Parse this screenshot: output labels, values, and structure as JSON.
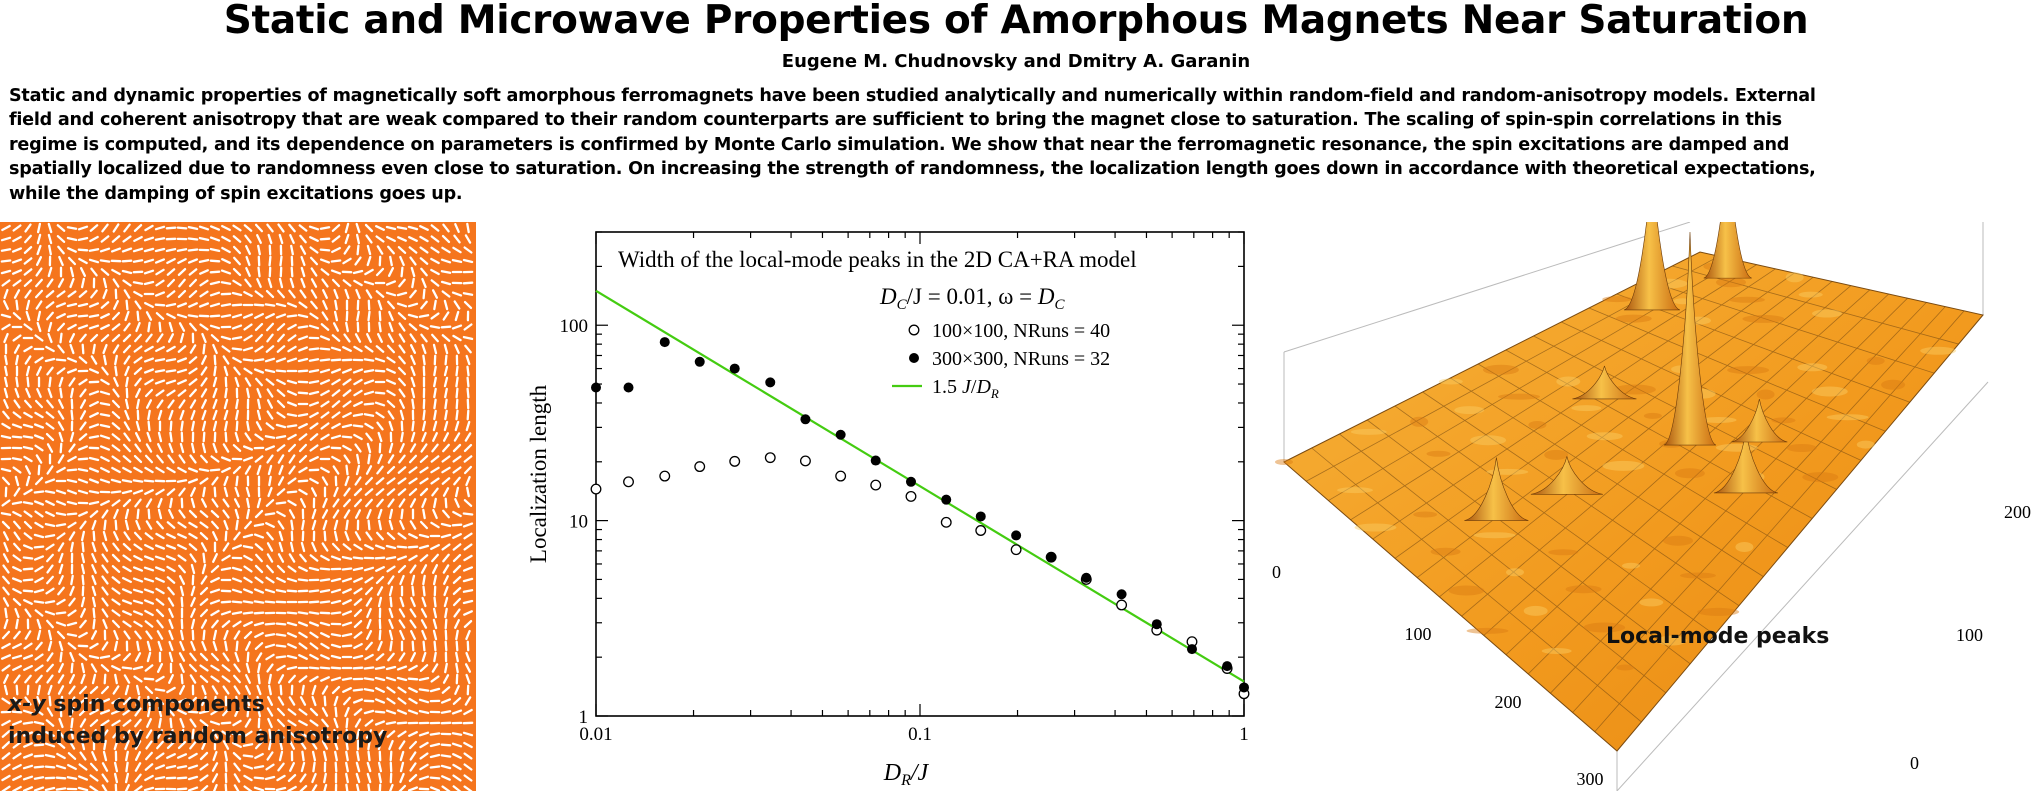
{
  "title": "Static and Microwave Properties of Amorphous Magnets Near Saturation",
  "authors": "Eugene M. Chudnovsky and Dmitry A. Garanin",
  "abstract_lines": [
    "Static and dynamic properties of magnetically soft amorphous ferromagnets have been studied analytically and numerically within random-field and random-anisotropy models. External",
    "field and coherent anisotropy that are weak compared to their random counterparts are sufficient to bring the magnet close to saturation. The scaling of spin-spin correlations in this",
    "regime is computed, and its dependence on parameters is confirmed by Monte Carlo simulation. We show that near the ferromagnetic resonance, the spin excitations are damped and",
    "spatially localized due to randomness even close to saturation. On increasing the strength of randomness, the localization length goes down in accordance with theoretical expectations,",
    "while the damping of spin excitations goes up."
  ],
  "left_figure": {
    "caption_line1_italic": "x-y",
    "caption_line1_rest": " spin components",
    "caption_line2": "induced by random anisotropy",
    "background_color": "#f5751d",
    "arrow_color": "#ffffff"
  },
  "right_figure": {
    "caption": "Local-mode peaks",
    "x_ticks": [
      "100",
      "200",
      "300"
    ],
    "y_ticks": [
      "0",
      "100",
      "200",
      "300"
    ],
    "left_tick": "0",
    "surface_color": "#f29a1e"
  },
  "chart_data": {
    "type": "scatter",
    "title": "Width of the local-mode peaks in the 2D CA+RA model",
    "subtitle_parts": [
      "D",
      "C",
      "/J  = 0.01, ω = ",
      "D",
      "C"
    ],
    "xlabel_parts": [
      "D",
      "R",
      "/J"
    ],
    "ylabel": "Localization length",
    "xscale": "log",
    "yscale": "log",
    "xlim": [
      0.01,
      1
    ],
    "ylim": [
      1,
      300
    ],
    "x_tick_labels": [
      "0.01",
      "0.1",
      "1"
    ],
    "y_tick_labels": [
      "1",
      "10",
      "100"
    ],
    "legend_position": "top-right",
    "series": [
      {
        "name": "100×100, NRuns = 40",
        "marker": "open-circle",
        "x": [
          0.01,
          0.0126,
          0.0163,
          0.0209,
          0.0268,
          0.0345,
          0.0443,
          0.0569,
          0.073,
          0.0938,
          0.1205,
          0.154,
          0.198,
          0.254,
          0.326,
          0.419,
          0.538,
          0.691,
          0.887,
          1.0
        ],
        "y": [
          14.5,
          15.8,
          16.9,
          18.9,
          20.1,
          21.0,
          20.2,
          16.9,
          15.2,
          13.3,
          9.8,
          8.9,
          7.1,
          6.5,
          5.0,
          3.7,
          2.75,
          2.4,
          1.75,
          1.3
        ]
      },
      {
        "name": "300×300, NRuns = 32",
        "marker": "filled-circle",
        "x": [
          0.01,
          0.0126,
          0.0163,
          0.0209,
          0.0268,
          0.0345,
          0.0443,
          0.0569,
          0.073,
          0.0938,
          0.1205,
          0.154,
          0.198,
          0.254,
          0.326,
          0.419,
          0.538,
          0.691,
          0.887,
          1.0
        ],
        "y": [
          48,
          48,
          82,
          65,
          60,
          51,
          33,
          27.5,
          20.3,
          15.8,
          12.8,
          10.5,
          8.4,
          6.5,
          5.1,
          4.2,
          2.95,
          2.2,
          1.8,
          1.4
        ]
      },
      {
        "name": "1.5 J/D_R",
        "name_parts": [
          "1.5 ",
          "J",
          "/",
          "D",
          "R"
        ],
        "marker": "line",
        "color": "#44cc11",
        "x": [
          0.01,
          1.0
        ],
        "y": [
          150,
          1.5
        ]
      }
    ]
  }
}
